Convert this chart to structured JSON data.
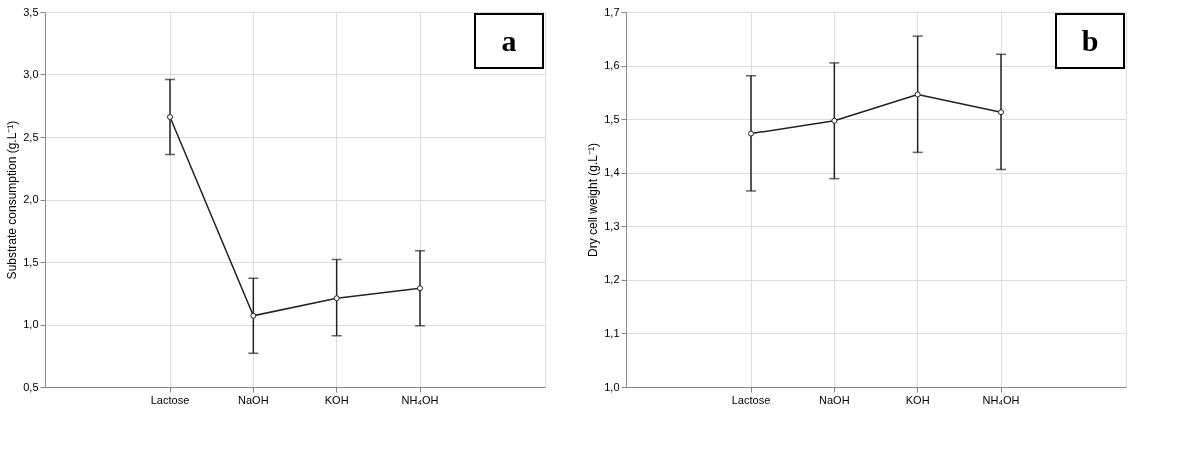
{
  "chart_data": [
    {
      "type": "line",
      "ylabel": "Substrate consumption (g.L⁻¹)",
      "categories": [
        "Lactose",
        "NaOH",
        "KOH",
        "NH₄OH"
      ],
      "annotations": [
        "a"
      ],
      "series": [
        {
          "color": "#222222",
          "values": [
            2.66,
            1.07,
            1.21,
            1.29
          ],
          "errors": [
            [
              2.36,
              2.96
            ],
            [
              0.77,
              1.37
            ],
            [
              0.91,
              1.52
            ],
            [
              0.99,
              1.59
            ]
          ]
        }
      ],
      "ylim": [
        0.5,
        3.5
      ],
      "yticks": [
        {
          "value": 0.5,
          "label": "0,5"
        },
        {
          "value": 1.0,
          "label": "1,0"
        },
        {
          "value": 1.5,
          "label": "1,5"
        },
        {
          "value": 2.0,
          "label": "2,0"
        },
        {
          "value": 2.5,
          "label": "2,5"
        },
        {
          "value": 3.0,
          "label": "3,0"
        },
        {
          "value": 3.5,
          "label": "3,5"
        }
      ],
      "grid": true,
      "legend": false,
      "marker": "circle",
      "line_style": "solid"
    },
    {
      "type": "line",
      "ylabel": "Dry cell weight (g.L⁻¹)",
      "categories": [
        "Lactose",
        "NaOH",
        "KOH",
        "NH₄OH"
      ],
      "annotations": [
        "b"
      ],
      "series": [
        {
          "color": "#222222",
          "values": [
            1.473,
            1.497,
            1.546,
            1.513
          ],
          "errors": [
            [
              1.366,
              1.581
            ],
            [
              1.389,
              1.605
            ],
            [
              1.438,
              1.655
            ],
            [
              1.406,
              1.621
            ]
          ]
        }
      ],
      "ylim": [
        1.0,
        1.7
      ],
      "yticks": [
        {
          "value": 1.0,
          "label": "1,0"
        },
        {
          "value": 1.1,
          "label": "1,1"
        },
        {
          "value": 1.2,
          "label": "1,2"
        },
        {
          "value": 1.3,
          "label": "1,3"
        },
        {
          "value": 1.4,
          "label": "1,4"
        },
        {
          "value": 1.5,
          "label": "1,5"
        },
        {
          "value": 1.6,
          "label": "1,6"
        },
        {
          "value": 1.7,
          "label": "1,7"
        }
      ],
      "grid": true,
      "legend": false,
      "marker": "circle",
      "line_style": "solid"
    }
  ]
}
